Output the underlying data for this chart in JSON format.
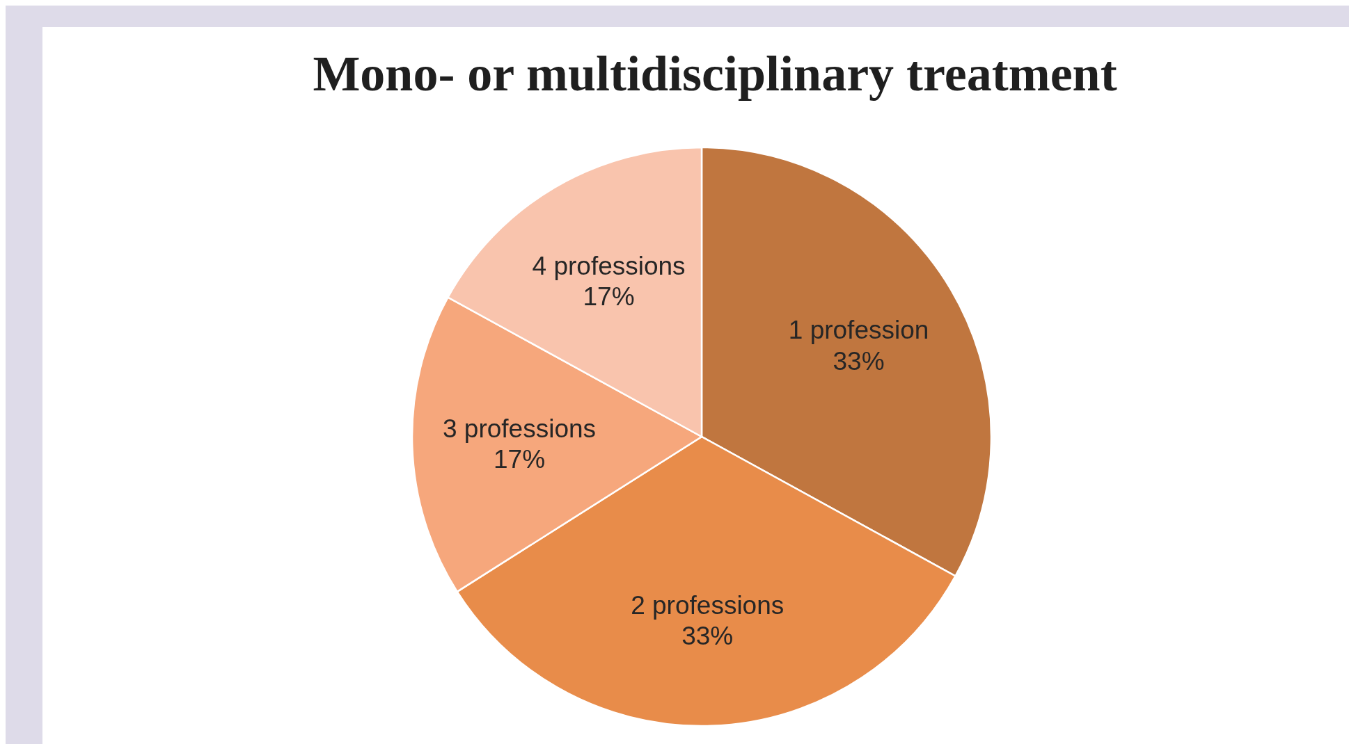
{
  "chart_data": {
    "type": "pie",
    "title": "Mono- or multidisciplinary treatment",
    "categories": [
      "1 profession",
      "2 professions",
      "3 professions",
      "4 professions"
    ],
    "values": [
      33,
      33,
      17,
      17
    ],
    "value_labels": [
      "33%",
      "33%",
      "17%",
      "17%"
    ],
    "colors": [
      "#c0763f",
      "#e88c4a",
      "#f6a77c",
      "#f9c4ad"
    ],
    "legend": false
  }
}
